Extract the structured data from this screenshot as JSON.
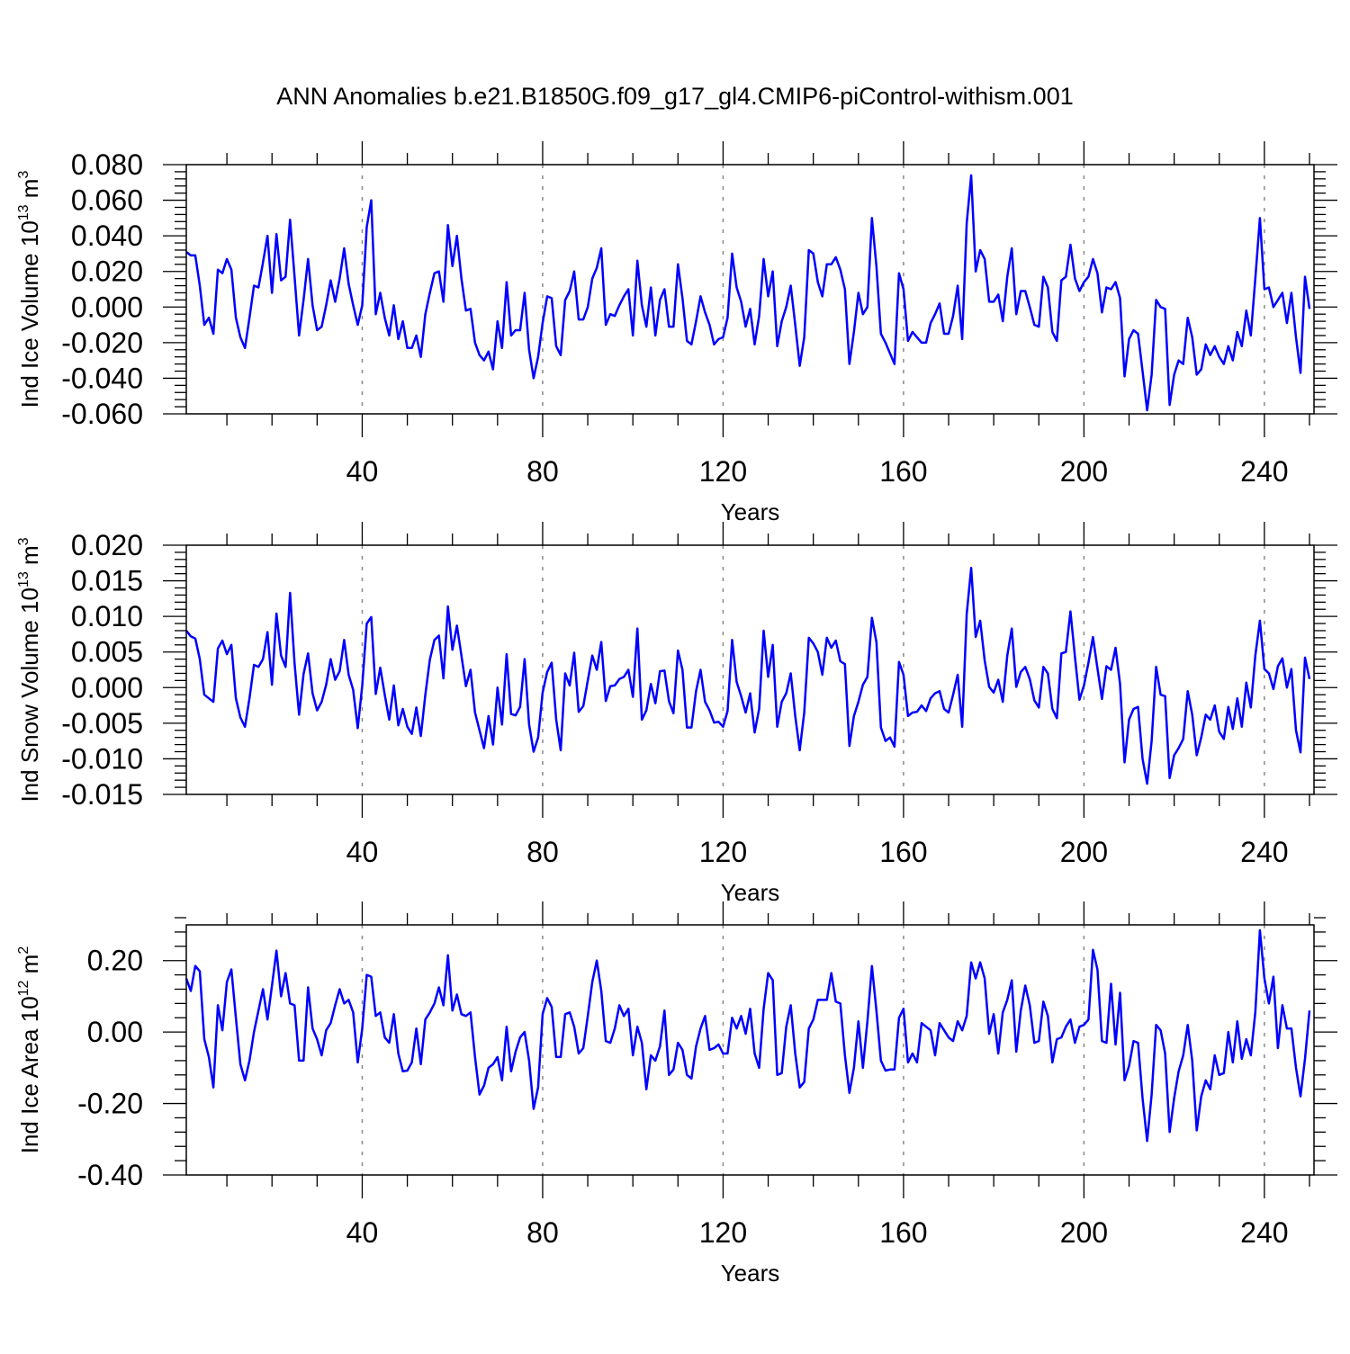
{
  "title": "ANN Anomalies b.e21.B1850G.f09_g17_gl4.CMIP6-piControl-withism.001",
  "line_color": "#0000ff",
  "chart_data": [
    {
      "type": "line",
      "ylabel": "Ind Ice Volume 10",
      "ylabel_exp": "13",
      "ylabel_unit": " m",
      "ylabel_unit_exp": "3",
      "xlabel": "Years",
      "xlim": [
        1,
        251
      ],
      "ylim": [
        -0.06,
        0.08
      ],
      "yticks": [
        -0.06,
        -0.04,
        -0.02,
        0.0,
        0.02,
        0.04,
        0.06,
        0.08
      ],
      "ytick_labels": [
        "-0.060",
        "-0.040",
        "-0.020",
        "0.000",
        "0.020",
        "0.040",
        "0.060",
        "0.080"
      ],
      "xticks": [
        40,
        80,
        120,
        160,
        200,
        240
      ],
      "xtick_labels": [
        "40",
        "80",
        "120",
        "160",
        "200",
        "240"
      ],
      "grid": "dashed vertical at major x ticks",
      "x_start": 1,
      "values": [
        0.031,
        0.029,
        0.029,
        0.012,
        -0.01,
        -0.006,
        -0.015,
        0.021,
        0.019,
        0.027,
        0.021,
        -0.006,
        -0.017,
        -0.023,
        -0.006,
        0.012,
        0.011,
        0.025,
        0.04,
        0.008,
        0.041,
        0.015,
        0.017,
        0.049,
        0.017,
        -0.016,
        0.004,
        0.027,
        0.001,
        -0.013,
        -0.011,
        0.001,
        0.015,
        0.003,
        0.016,
        0.033,
        0.013,
        0.001,
        -0.01,
        0.001,
        0.045,
        0.06,
        -0.004,
        0.008,
        -0.006,
        -0.016,
        0.001,
        -0.018,
        -0.008,
        -0.023,
        -0.023,
        -0.016,
        -0.028,
        -0.004,
        0.008,
        0.019,
        0.02,
        0.003,
        0.046,
        0.023,
        0.04,
        0.016,
        -0.002,
        -0.001,
        -0.02,
        -0.027,
        -0.03,
        -0.025,
        -0.035,
        -0.008,
        -0.023,
        0.014,
        -0.016,
        -0.013,
        -0.013,
        0.008,
        -0.024,
        -0.04,
        -0.028,
        -0.009,
        0.006,
        0.005,
        -0.022,
        -0.027,
        0.004,
        0.009,
        0.02,
        -0.007,
        -0.007,
        0.0,
        0.016,
        0.022,
        0.033,
        -0.01,
        -0.004,
        -0.005,
        0.001,
        0.006,
        0.01,
        -0.016,
        0.026,
        0.001,
        -0.011,
        0.011,
        -0.016,
        0.004,
        0.01,
        -0.011,
        -0.011,
        0.024,
        0.005,
        -0.019,
        -0.021,
        -0.008,
        0.006,
        -0.003,
        -0.01,
        -0.021,
        -0.018,
        -0.017,
        -0.006,
        0.03,
        0.011,
        0.003,
        -0.011,
        -0.001,
        -0.021,
        -0.005,
        0.027,
        0.006,
        0.02,
        -0.022,
        -0.008,
        0.0,
        0.012,
        -0.01,
        -0.033,
        -0.017,
        0.032,
        0.03,
        0.014,
        0.006,
        0.024,
        0.024,
        0.028,
        0.021,
        0.01,
        -0.032,
        -0.014,
        0.008,
        -0.004,
        0.0,
        0.05,
        0.023,
        -0.015,
        -0.02,
        -0.026,
        -0.032,
        0.019,
        0.01,
        -0.019,
        -0.014,
        -0.017,
        -0.02,
        -0.02,
        -0.009,
        -0.004,
        0.002,
        -0.015,
        -0.015,
        -0.005,
        0.012,
        -0.018,
        0.047,
        0.074,
        0.02,
        0.032,
        0.027,
        0.003,
        0.003,
        0.007,
        -0.008,
        0.017,
        0.033,
        -0.004,
        0.009,
        0.009,
        0.0,
        -0.01,
        -0.011,
        0.017,
        0.011,
        -0.014,
        -0.019,
        0.015,
        0.017,
        0.035,
        0.016,
        0.009,
        0.014,
        0.017,
        0.027,
        0.019,
        -0.003,
        0.011,
        0.01,
        0.014,
        0.005,
        -0.039,
        -0.018,
        -0.013,
        -0.015,
        -0.036,
        -0.058,
        -0.038,
        0.004,
        0.0,
        -0.001,
        -0.055,
        -0.038,
        -0.03,
        -0.032,
        -0.006,
        -0.017,
        -0.038,
        -0.035,
        -0.021,
        -0.027,
        -0.022,
        -0.028,
        -0.032,
        -0.022,
        -0.03,
        -0.014,
        -0.022,
        -0.002,
        -0.016,
        0.016,
        0.05,
        0.01,
        0.011,
        0.0,
        0.004,
        0.008,
        -0.009,
        0.008,
        -0.017,
        -0.037,
        0.017,
        -0.001
      ]
    },
    {
      "type": "line",
      "ylabel": "Ind Snow Volume 10",
      "ylabel_exp": "13",
      "ylabel_unit": " m",
      "ylabel_unit_exp": "3",
      "xlabel": "Years",
      "xlim": [
        1,
        251
      ],
      "ylim": [
        -0.015,
        0.02
      ],
      "yticks": [
        -0.015,
        -0.01,
        -0.005,
        0.0,
        0.005,
        0.01,
        0.015,
        0.02
      ],
      "ytick_labels": [
        "-0.015",
        "-0.010",
        "-0.005",
        "0.000",
        "0.005",
        "0.010",
        "0.015",
        "0.020"
      ],
      "xticks": [
        40,
        80,
        120,
        160,
        200,
        240
      ],
      "xtick_labels": [
        "40",
        "80",
        "120",
        "160",
        "200",
        "240"
      ],
      "grid": "dashed vertical at major x ticks",
      "x_start": 1,
      "values": [
        0.008,
        0.0072,
        0.0069,
        0.004,
        -0.001,
        -0.0015,
        -0.002,
        0.0055,
        0.0066,
        0.0047,
        0.006,
        -0.0015,
        -0.0042,
        -0.0055,
        -0.0015,
        0.0032,
        0.0029,
        0.004,
        0.0078,
        0.0004,
        0.0104,
        0.0045,
        0.0029,
        0.0133,
        0.0034,
        -0.0038,
        0.0019,
        0.0048,
        -0.0008,
        -0.0032,
        -0.002,
        0.0004,
        0.004,
        0.0011,
        0.0023,
        0.0067,
        0.0018,
        -0.0003,
        -0.0057,
        0.0003,
        0.009,
        0.0099,
        -0.0009,
        0.0028,
        -0.001,
        -0.0045,
        0.0003,
        -0.0053,
        -0.003,
        -0.0055,
        -0.0065,
        -0.0028,
        -0.0068,
        -0.001,
        0.0039,
        0.0067,
        0.0073,
        0.0013,
        0.0114,
        0.0053,
        0.0087,
        0.0045,
        0.0002,
        0.0025,
        -0.0035,
        -0.006,
        -0.0085,
        -0.004,
        -0.008,
        0.0,
        -0.0052,
        0.0047,
        -0.0037,
        -0.0039,
        -0.0027,
        0.004,
        -0.0052,
        -0.009,
        -0.007,
        -0.0007,
        0.0022,
        0.0035,
        -0.0045,
        -0.0088,
        0.002,
        0.0003,
        0.0049,
        -0.0034,
        -0.0026,
        0.001,
        0.0045,
        0.0025,
        0.0064,
        -0.0019,
        0.0002,
        0.0003,
        0.0012,
        0.0015,
        0.0025,
        -0.0013,
        0.0083,
        -0.0045,
        -0.0032,
        0.0005,
        -0.0022,
        0.0023,
        0.0024,
        -0.0019,
        -0.0036,
        0.0052,
        0.0025,
        -0.0056,
        -0.0056,
        -0.0005,
        0.0025,
        -0.002,
        -0.0032,
        -0.0049,
        -0.0048,
        -0.0055,
        -0.0033,
        0.0067,
        0.0008,
        -0.0012,
        -0.0035,
        -0.0008,
        -0.0063,
        -0.003,
        0.008,
        0.0015,
        0.006,
        -0.0055,
        -0.002,
        -0.0008,
        0.002,
        -0.004,
        -0.0088,
        -0.0035,
        0.007,
        0.0062,
        0.005,
        0.0018,
        0.007,
        0.0056,
        0.0066,
        0.0037,
        0.0033,
        -0.0082,
        -0.004,
        -0.002,
        0.0004,
        0.0015,
        0.0098,
        0.0064,
        -0.0056,
        -0.0075,
        -0.007,
        -0.0083,
        0.0036,
        0.0018,
        -0.004,
        -0.0035,
        -0.0034,
        -0.0025,
        -0.0033,
        -0.0015,
        -0.0008,
        -0.0005,
        -0.003,
        -0.0035,
        -0.001,
        0.0018,
        -0.0055,
        0.0103,
        0.0168,
        0.0071,
        0.0094,
        0.0038,
        0.0001,
        -0.0007,
        0.0011,
        -0.002,
        0.0045,
        0.0083,
        0.0001,
        0.0022,
        0.0029,
        0.0012,
        -0.0018,
        -0.0028,
        0.0029,
        0.002,
        -0.003,
        -0.0043,
        0.0048,
        0.005,
        0.0107,
        0.0043,
        -0.0017,
        0.0003,
        0.0035,
        0.0071,
        0.0027,
        -0.0016,
        0.003,
        0.0025,
        0.0056,
        0.0005,
        -0.0105,
        -0.0045,
        -0.003,
        -0.0027,
        -0.01,
        -0.0135,
        -0.0075,
        0.0029,
        -0.001,
        -0.0012,
        -0.0127,
        -0.0095,
        -0.0085,
        -0.0072,
        -0.0005,
        -0.0038,
        -0.0095,
        -0.007,
        -0.0038,
        -0.0045,
        -0.0025,
        -0.0062,
        -0.0072,
        -0.0027,
        -0.0058,
        -0.0015,
        -0.0055,
        0.0007,
        -0.0028,
        0.0045,
        0.0094,
        0.0026,
        0.002,
        -0.0002,
        0.003,
        0.0041,
        0.0,
        0.0026,
        -0.006,
        -0.0091,
        0.0042,
        0.0012
      ]
    },
    {
      "type": "line",
      "ylabel": "Ind Ice Area 10",
      "ylabel_exp": "12",
      "ylabel_unit": " m",
      "ylabel_unit_exp": "2",
      "xlabel": "Years",
      "xlim": [
        1,
        251
      ],
      "ylim": [
        -0.4,
        0.3
      ],
      "yticks": [
        -0.4,
        -0.2,
        0.0,
        0.2
      ],
      "ytick_labels": [
        "-0.40",
        "-0.20",
        "0.00",
        "0.20"
      ],
      "xticks": [
        40,
        80,
        120,
        160,
        200,
        240
      ],
      "xtick_labels": [
        "40",
        "80",
        "120",
        "160",
        "200",
        "240"
      ],
      "grid": "dashed vertical at major x ticks",
      "x_start": 1,
      "values": [
        0.15,
        0.115,
        0.185,
        0.17,
        -0.02,
        -0.07,
        -0.155,
        0.075,
        0.005,
        0.14,
        0.175,
        0.04,
        -0.09,
        -0.135,
        -0.08,
        0.0,
        0.06,
        0.12,
        0.035,
        0.13,
        0.228,
        0.1,
        0.165,
        0.08,
        0.075,
        -0.08,
        -0.08,
        0.125,
        0.01,
        -0.02,
        -0.065,
        0.005,
        0.025,
        0.075,
        0.12,
        0.08,
        0.09,
        0.055,
        -0.085,
        0.01,
        0.16,
        0.155,
        0.045,
        0.055,
        -0.015,
        -0.03,
        0.05,
        -0.06,
        -0.11,
        -0.108,
        -0.085,
        0.01,
        -0.09,
        0.035,
        0.055,
        0.08,
        0.125,
        0.075,
        0.215,
        0.06,
        0.105,
        0.05,
        0.045,
        0.055,
        -0.07,
        -0.175,
        -0.15,
        -0.1,
        -0.09,
        -0.07,
        -0.135,
        0.015,
        -0.11,
        -0.055,
        -0.015,
        0.0,
        -0.08,
        -0.215,
        -0.155,
        0.05,
        0.095,
        0.07,
        -0.07,
        -0.07,
        0.05,
        0.055,
        0.015,
        -0.06,
        -0.045,
        0.045,
        0.14,
        0.2,
        0.115,
        -0.025,
        -0.03,
        0.01,
        0.075,
        0.045,
        0.065,
        -0.065,
        0.015,
        -0.03,
        -0.16,
        -0.065,
        -0.08,
        -0.04,
        0.06,
        -0.12,
        -0.105,
        -0.03,
        -0.05,
        -0.12,
        -0.13,
        -0.04,
        0.01,
        0.045,
        -0.05,
        -0.045,
        -0.035,
        -0.06,
        -0.06,
        0.04,
        0.01,
        0.045,
        -0.005,
        0.065,
        -0.06,
        -0.1,
        0.065,
        0.165,
        0.145,
        -0.12,
        -0.115,
        0.015,
        0.075,
        -0.06,
        -0.155,
        -0.14,
        0.01,
        0.035,
        0.09,
        0.09,
        0.09,
        0.165,
        0.085,
        0.08,
        -0.065,
        -0.17,
        -0.1,
        0.03,
        -0.1,
        0.03,
        0.185,
        0.06,
        -0.08,
        -0.108,
        -0.105,
        -0.105,
        0.04,
        0.065,
        -0.085,
        -0.06,
        -0.085,
        0.025,
        0.015,
        0.005,
        -0.065,
        0.025,
        0.005,
        -0.015,
        -0.025,
        0.03,
        0.005,
        0.045,
        0.195,
        0.15,
        0.195,
        0.15,
        -0.005,
        0.05,
        -0.06,
        0.055,
        0.09,
        0.145,
        -0.055,
        0.06,
        0.13,
        0.075,
        -0.03,
        -0.025,
        0.085,
        0.045,
        -0.085,
        -0.02,
        -0.015,
        0.015,
        0.035,
        -0.03,
        0.015,
        0.02,
        0.035,
        0.23,
        0.175,
        -0.025,
        -0.03,
        0.135,
        -0.035,
        0.11,
        -0.135,
        -0.095,
        -0.025,
        -0.03,
        -0.185,
        -0.305,
        -0.175,
        0.02,
        0.005,
        -0.06,
        -0.28,
        -0.185,
        -0.11,
        -0.065,
        0.02,
        -0.08,
        -0.275,
        -0.18,
        -0.135,
        -0.16,
        -0.065,
        -0.12,
        -0.115,
        0.0,
        -0.085,
        0.03,
        -0.075,
        -0.02,
        -0.065,
        0.055,
        0.285,
        0.15,
        0.08,
        0.155,
        -0.045,
        0.075,
        0.01,
        0.01,
        -0.1,
        -0.18,
        -0.075,
        0.06
      ]
    }
  ]
}
